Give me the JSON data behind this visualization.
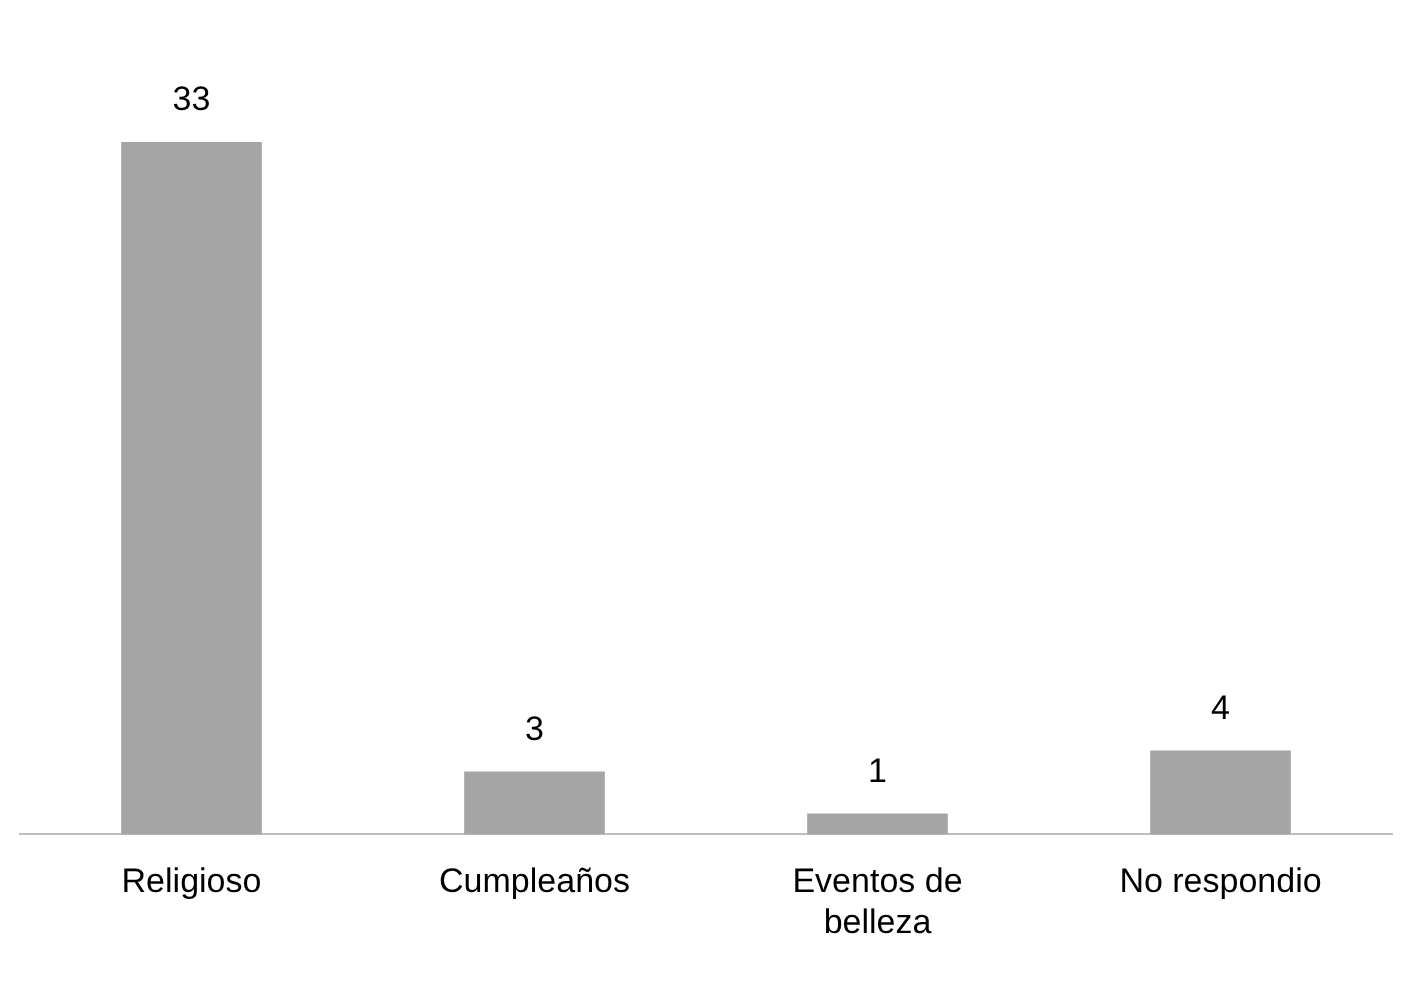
{
  "chart_data": {
    "type": "bar",
    "categories": [
      "Religioso",
      "Cumpleaños",
      "Eventos de belleza",
      "No respondio"
    ],
    "values": [
      33,
      3,
      1,
      4
    ],
    "color": "#a5a5a5",
    "data_labels": true,
    "grid": false,
    "legend": false,
    "tick_labels": "x"
  }
}
